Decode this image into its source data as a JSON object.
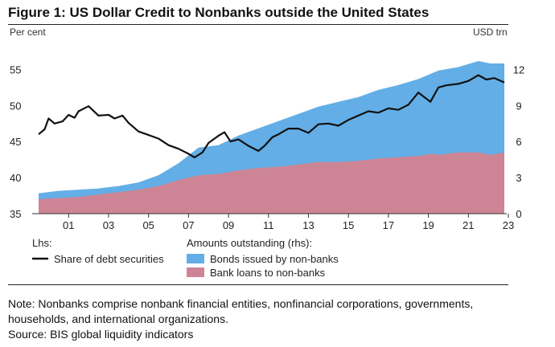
{
  "figure_title": "Figure 1: US Dollar Credit to Nonbanks outside the United States",
  "note": {
    "line1": "Note: Nonbanks comprise nonbank financial entities, nonfinancial corporations, governments,",
    "line2": "households, and international organizations.",
    "source": "Source: BIS global liquidity indicators"
  },
  "colors": {
    "bonds": "#63aee6",
    "loans": "#cd8595",
    "share": "#111111"
  },
  "chart_data": {
    "type": "area",
    "title": "Figure 1: US Dollar Credit to Nonbanks outside the United States",
    "left_axis": {
      "label": "Per cent",
      "ticks": [
        35,
        40,
        45,
        50,
        55
      ],
      "range": [
        35,
        57.5
      ]
    },
    "right_axis": {
      "label": "USD trn",
      "ticks": [
        0,
        3,
        6,
        9,
        12
      ],
      "range": [
        0,
        13.5
      ]
    },
    "x_axis": {
      "ticks": [
        "01",
        "03",
        "05",
        "07",
        "09",
        "11",
        "13",
        "15",
        "17",
        "19",
        "21",
        "23"
      ],
      "range": [
        2000,
        2023.3
      ]
    },
    "legend": {
      "lhs_header": "Lhs:",
      "rhs_header": "Amounts outstanding (rhs):",
      "share_label": "Share of debt securities",
      "bonds_label": "Bonds issued by non-banks",
      "loans_label": "Bank loans to non-banks"
    },
    "series": [
      {
        "name": "Bank loans to non-banks",
        "axis": "right",
        "x": [
          2000,
          2001,
          2002,
          2003,
          2004,
          2005,
          2006,
          2007,
          2008,
          2009,
          2010,
          2011,
          2012,
          2013,
          2014,
          2015,
          2016,
          2017,
          2018,
          2019,
          2019.7,
          2020,
          2021,
          2022,
          2022.6,
          2023.3
        ],
        "values": [
          1.2,
          1.3,
          1.4,
          1.6,
          1.8,
          2.0,
          2.3,
          2.8,
          3.2,
          3.3,
          3.6,
          3.8,
          3.9,
          4.1,
          4.3,
          4.3,
          4.4,
          4.6,
          4.7,
          4.8,
          5.0,
          4.9,
          5.1,
          5.1,
          4.9,
          5.1
        ]
      },
      {
        "name": "Bonds issued by non-banks (stacked total)",
        "axis": "right",
        "x": [
          2000,
          2001,
          2002,
          2003,
          2004,
          2005,
          2006,
          2007,
          2008,
          2009,
          2010,
          2011,
          2012,
          2013,
          2014,
          2015,
          2016,
          2017,
          2018,
          2019,
          2020,
          2021,
          2022,
          2022.6,
          2023.3
        ],
        "values": [
          1.7,
          1.9,
          2.0,
          2.1,
          2.3,
          2.6,
          3.2,
          4.2,
          5.5,
          5.7,
          6.5,
          7.1,
          7.7,
          8.3,
          8.9,
          9.3,
          9.7,
          10.3,
          10.7,
          11.2,
          11.9,
          12.2,
          12.7,
          12.5,
          12.5
        ]
      },
      {
        "name": "Share of debt securities",
        "axis": "left",
        "x": [
          2000,
          2000.3,
          2000.5,
          2000.8,
          2001.2,
          2001.5,
          2001.8,
          2002,
          2002.5,
          2003,
          2003.5,
          2003.8,
          2004.2,
          2004.5,
          2005,
          2005.5,
          2006,
          2006.5,
          2007,
          2007.5,
          2007.8,
          2008.2,
          2008.5,
          2009,
          2009.3,
          2009.6,
          2010,
          2010.5,
          2011,
          2011.3,
          2011.7,
          2012,
          2012.5,
          2013,
          2013.5,
          2014,
          2014.5,
          2015,
          2015.5,
          2016,
          2016.5,
          2017,
          2017.5,
          2018,
          2018.5,
          2019,
          2019.6,
          2020,
          2020.4,
          2021,
          2021.5,
          2022,
          2022.4,
          2022.8,
          2023.3
        ],
        "values": [
          46.0,
          46.7,
          48.2,
          47.5,
          47.8,
          48.7,
          48.3,
          49.2,
          49.9,
          48.6,
          48.7,
          48.2,
          48.6,
          47.6,
          46.4,
          45.9,
          45.4,
          44.5,
          44.0,
          43.3,
          42.8,
          43.5,
          44.8,
          45.8,
          46.3,
          45.0,
          45.3,
          44.4,
          43.7,
          44.4,
          45.6,
          46.0,
          46.8,
          46.8,
          46.2,
          47.4,
          47.5,
          47.2,
          48.0,
          48.6,
          49.2,
          49.0,
          49.6,
          49.4,
          50.1,
          51.8,
          50.5,
          52.5,
          52.8,
          53.0,
          53.4,
          54.2,
          53.6,
          53.8,
          53.2
        ]
      }
    ]
  }
}
